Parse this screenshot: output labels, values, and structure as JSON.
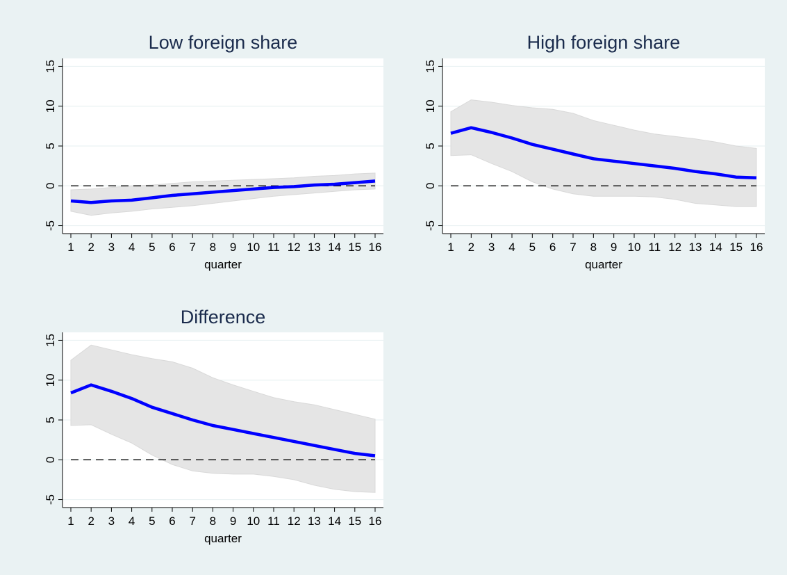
{
  "colors": {
    "background": "#eaf2f3",
    "plot_area": "#ffffff",
    "line": "#0000ff",
    "band": "#e5e5e5",
    "band_edge": "#d9d9d9",
    "zero_line": "#000000",
    "grid": "#eaf2f3",
    "title": "#1a2b4c"
  },
  "chart_data": [
    {
      "type": "line",
      "title": "Low foreign share",
      "xlabel": "quarter",
      "ylabel": "",
      "x": [
        1,
        2,
        3,
        4,
        5,
        6,
        7,
        8,
        9,
        10,
        11,
        12,
        13,
        14,
        15,
        16
      ],
      "ylim": [
        -6,
        16
      ],
      "yticks": [
        -5,
        0,
        5,
        10,
        15
      ],
      "grid": true,
      "reference_line": 0,
      "series": [
        {
          "role": "estimate",
          "values": [
            -1.9,
            -2.1,
            -1.9,
            -1.8,
            -1.5,
            -1.2,
            -1.0,
            -0.8,
            -0.6,
            -0.4,
            -0.2,
            -0.1,
            0.1,
            0.2,
            0.4,
            0.6
          ]
        },
        {
          "role": "lower",
          "values": [
            -3.2,
            -3.7,
            -3.4,
            -3.2,
            -2.9,
            -2.7,
            -2.5,
            -2.2,
            -1.9,
            -1.6,
            -1.3,
            -1.1,
            -0.9,
            -0.7,
            -0.5,
            -0.4
          ]
        },
        {
          "role": "upper",
          "values": [
            -0.5,
            -0.4,
            -0.2,
            0.0,
            0.1,
            0.3,
            0.5,
            0.6,
            0.7,
            0.8,
            0.9,
            1.0,
            1.2,
            1.3,
            1.5,
            1.6
          ]
        }
      ]
    },
    {
      "type": "line",
      "title": "High foreign share",
      "xlabel": "quarter",
      "ylabel": "",
      "x": [
        1,
        2,
        3,
        4,
        5,
        6,
        7,
        8,
        9,
        10,
        11,
        12,
        13,
        14,
        15,
        16
      ],
      "ylim": [
        -6,
        16
      ],
      "yticks": [
        -5,
        0,
        5,
        10,
        15
      ],
      "grid": true,
      "reference_line": 0,
      "series": [
        {
          "role": "estimate",
          "values": [
            6.6,
            7.3,
            6.7,
            6.0,
            5.2,
            4.6,
            4.0,
            3.4,
            3.1,
            2.8,
            2.5,
            2.2,
            1.8,
            1.5,
            1.1,
            1.0
          ]
        },
        {
          "role": "lower",
          "values": [
            3.8,
            3.9,
            2.8,
            1.8,
            0.5,
            -0.4,
            -1.0,
            -1.3,
            -1.3,
            -1.3,
            -1.4,
            -1.7,
            -2.2,
            -2.4,
            -2.6,
            -2.6
          ]
        },
        {
          "role": "upper",
          "values": [
            9.3,
            10.8,
            10.5,
            10.1,
            9.8,
            9.6,
            9.1,
            8.2,
            7.6,
            7.0,
            6.5,
            6.2,
            5.9,
            5.5,
            5.0,
            4.7
          ]
        }
      ]
    },
    {
      "type": "line",
      "title": "Difference",
      "xlabel": "quarter",
      "ylabel": "",
      "x": [
        1,
        2,
        3,
        4,
        5,
        6,
        7,
        8,
        9,
        10,
        11,
        12,
        13,
        14,
        15,
        16
      ],
      "ylim": [
        -6,
        16
      ],
      "yticks": [
        -5,
        0,
        5,
        10,
        15
      ],
      "grid": true,
      "reference_line": 0,
      "series": [
        {
          "role": "estimate",
          "values": [
            8.4,
            9.4,
            8.6,
            7.7,
            6.6,
            5.8,
            5.0,
            4.3,
            3.8,
            3.3,
            2.8,
            2.3,
            1.8,
            1.3,
            0.8,
            0.5
          ]
        },
        {
          "role": "lower",
          "values": [
            4.3,
            4.4,
            3.2,
            2.1,
            0.6,
            -0.6,
            -1.4,
            -1.7,
            -1.8,
            -1.8,
            -2.1,
            -2.5,
            -3.2,
            -3.7,
            -4.0,
            -4.1
          ]
        },
        {
          "role": "upper",
          "values": [
            12.5,
            14.4,
            13.8,
            13.2,
            12.7,
            12.3,
            11.5,
            10.3,
            9.4,
            8.6,
            7.8,
            7.3,
            6.9,
            6.3,
            5.7,
            5.1
          ]
        }
      ]
    }
  ]
}
